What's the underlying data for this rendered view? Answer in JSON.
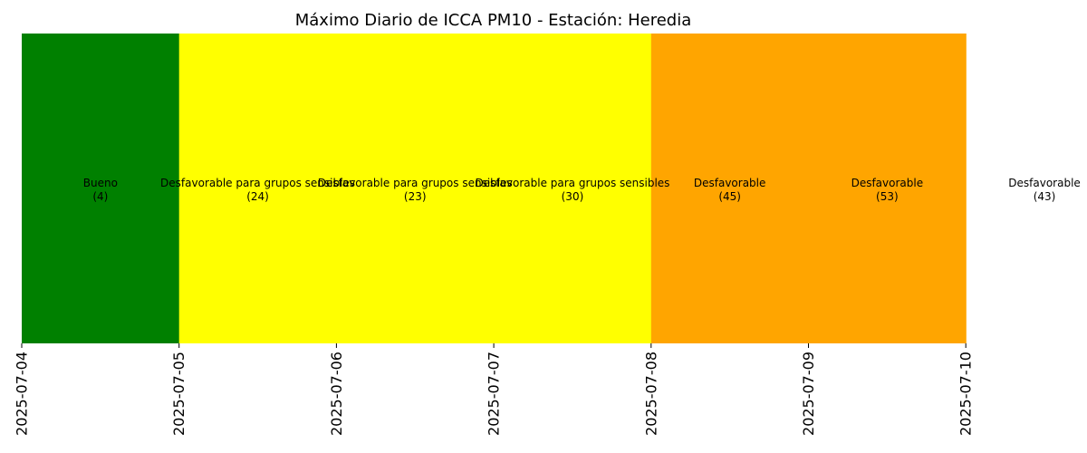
{
  "chart_data": {
    "type": "heatmap",
    "title": "Máximo Diario de ICCA PM10 - Estación: Heredia",
    "xlabel": "",
    "ylabel": "",
    "x_ticks": [
      "2025-07-04",
      "2025-07-05",
      "2025-07-06",
      "2025-07-07",
      "2025-07-08",
      "2025-07-09",
      "2025-07-10"
    ],
    "cells": [
      {
        "date": "2025-07-04",
        "category": "Bueno",
        "value": 4,
        "color": "#008000"
      },
      {
        "date": "2025-07-05",
        "category": "Desfavorable para grupos sensibles",
        "value": 24,
        "color": "#ffff00"
      },
      {
        "date": "2025-07-06",
        "category": "Desfavorable para grupos sensibles",
        "value": 23,
        "color": "#ffff00"
      },
      {
        "date": "2025-07-07",
        "category": "Desfavorable para grupos sensibles",
        "value": 30,
        "color": "#ffff00"
      },
      {
        "date": "2025-07-08",
        "category": "Desfavorable",
        "value": 45,
        "color": "#ffa500"
      },
      {
        "date": "2025-07-09",
        "category": "Desfavorable",
        "value": 53,
        "color": "#ffa500"
      },
      {
        "date": "2025-07-10",
        "category": "Desfavorable",
        "value": 43,
        "color": "#ffa500"
      }
    ],
    "grid": false,
    "legend": "none"
  }
}
